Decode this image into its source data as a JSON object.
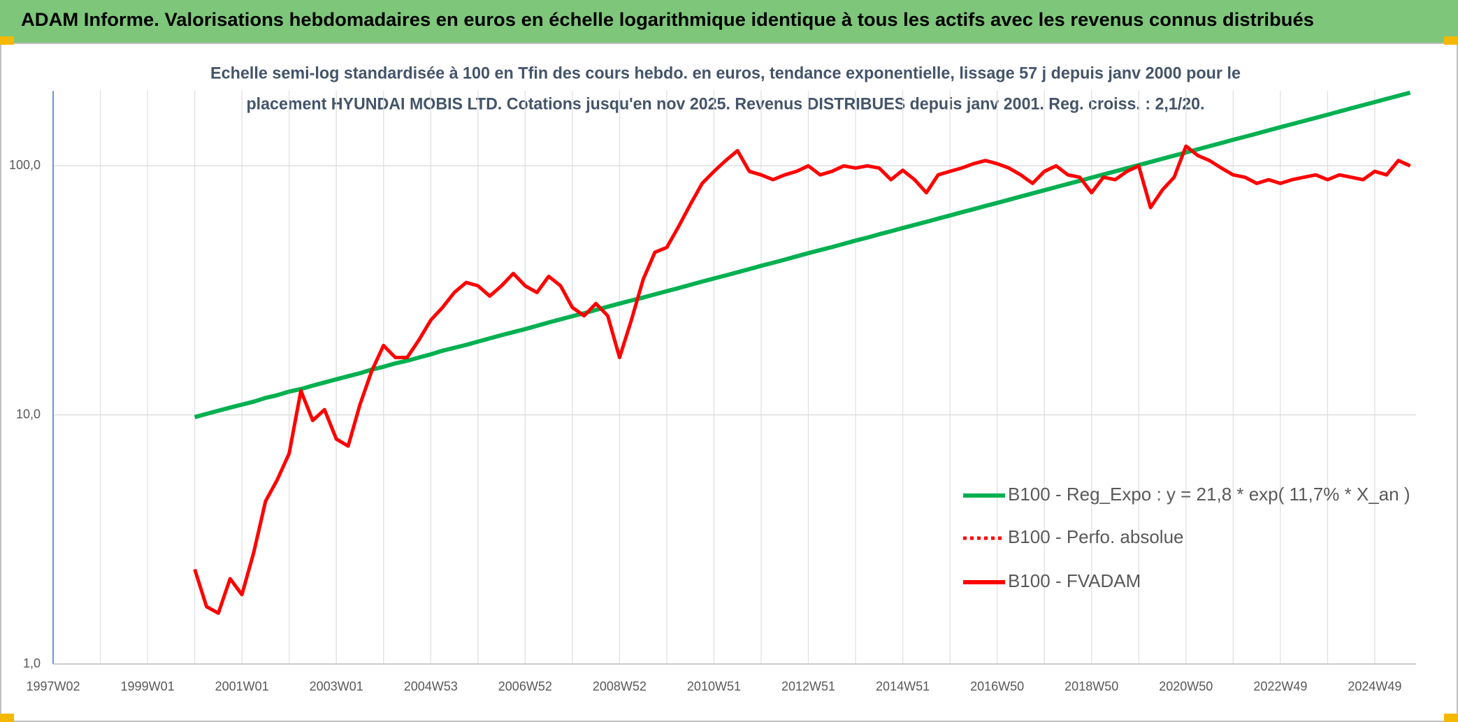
{
  "chart_data": {
    "type": "line",
    "title": "ADAM Informe. Valorisations hebdomadaires en euros en échelle logarithmique identique à tous les actifs avec les revenus connus distribués",
    "subtitle": [
      "Echelle semi-log standardisée à 100 en Tfin des cours hebdo. en euros, tendance exponentielle, lissage 57 j depuis janv 2000 pour le",
      "placement HYUNDAI MOBIS LTD. Cotations jusqu'en nov 2025. Revenus DISTRIBUES depuis janv 2001. Reg. croiss. : 2,1/20."
    ],
    "log_scale": true,
    "grid": true,
    "legend": "right",
    "ylim": [
      1,
      200
    ],
    "yticks": [
      {
        "value": 1,
        "label": "1,0"
      },
      {
        "value": 10,
        "label": "10,0"
      },
      {
        "value": 100,
        "label": "100,0"
      }
    ],
    "categories": [
      "1997W02",
      null,
      null,
      null,
      null,
      null,
      null,
      null,
      "1999W01",
      null,
      null,
      null,
      null,
      null,
      null,
      null,
      "2001W01",
      null,
      null,
      null,
      null,
      null,
      null,
      null,
      "2003W01",
      null,
      null,
      null,
      null,
      null,
      null,
      null,
      "2004W53",
      null,
      null,
      null,
      null,
      null,
      null,
      null,
      "2006W52",
      null,
      null,
      null,
      null,
      null,
      null,
      null,
      "2008W52",
      null,
      null,
      null,
      null,
      null,
      null,
      null,
      "2010W51",
      null,
      null,
      null,
      null,
      null,
      null,
      null,
      "2012W51",
      null,
      null,
      null,
      null,
      null,
      null,
      null,
      "2014W51",
      null,
      null,
      null,
      null,
      null,
      null,
      null,
      "2016W50",
      null,
      null,
      null,
      null,
      null,
      null,
      null,
      "2018W50",
      null,
      null,
      null,
      null,
      null,
      null,
      null,
      "2020W50",
      null,
      null,
      null,
      null,
      null,
      null,
      null,
      "2022W49",
      null,
      null,
      null,
      null,
      null,
      null,
      null,
      "2024W49",
      null,
      null,
      null
    ],
    "series": [
      {
        "name": "B100 - Reg_Expo : y = 21,8 * exp( 11,7% *  X_an )",
        "color": "#00b050",
        "style": "solid",
        "values": [
          null,
          null,
          null,
          null,
          null,
          null,
          null,
          null,
          null,
          null,
          null,
          null,
          9.8,
          10.1,
          10.4,
          10.7,
          11.0,
          11.3,
          11.7,
          12.0,
          12.4,
          12.7,
          13.1,
          13.5,
          13.9,
          14.3,
          14.7,
          15.2,
          15.6,
          16.1,
          16.5,
          17.0,
          17.5,
          18.1,
          18.6,
          19.1,
          19.7,
          20.3,
          20.9,
          21.5,
          22.1,
          22.8,
          23.5,
          24.2,
          24.9,
          25.6,
          26.4,
          27.2,
          28.0,
          28.8,
          29.6,
          30.5,
          31.4,
          32.3,
          33.3,
          34.3,
          35.3,
          36.3,
          37.4,
          38.5,
          39.7,
          40.8,
          42.0,
          43.3,
          44.6,
          45.9,
          47.2,
          48.6,
          50.1,
          51.5,
          53.1,
          54.6,
          56.3,
          57.9,
          59.6,
          61.4,
          63.2,
          65.1,
          67.0,
          69.0,
          71.0,
          73.1,
          75.3,
          77.5,
          79.8,
          82.2,
          84.6,
          87.1,
          89.7,
          92.3,
          95.0,
          97.8,
          100.7,
          103.7,
          106.8,
          109.9,
          113.2,
          116.5,
          120.0,
          123.5,
          127.2,
          130.9,
          134.8,
          138.8,
          142.9,
          147.1,
          151.4,
          155.9,
          160.5,
          165.3,
          170.2,
          175.2,
          180.4,
          185.7,
          191.2,
          196.8
        ]
      },
      {
        "name": "B100 - Perfo. absolue",
        "color": "#ff0000",
        "style": "dotted",
        "values": [
          null,
          null,
          null,
          null,
          null,
          null,
          null,
          null,
          null,
          null,
          null,
          null,
          null,
          null,
          null,
          null,
          null,
          null,
          null,
          null,
          null,
          null,
          null,
          null,
          null,
          null,
          null,
          null,
          null,
          null,
          null,
          null,
          null,
          null,
          null,
          null,
          null,
          null,
          null,
          null,
          null,
          null,
          null,
          null,
          null,
          null,
          null,
          null,
          null,
          null,
          null,
          null,
          null,
          null,
          null,
          null,
          null,
          null,
          null,
          null,
          null,
          null,
          null,
          null,
          null,
          null,
          null,
          null,
          null,
          null,
          null,
          null,
          null,
          null,
          null,
          null,
          null,
          null,
          null,
          null,
          null,
          null,
          null,
          null,
          null,
          null,
          null,
          null,
          null,
          null,
          null,
          null,
          null,
          null,
          null,
          null,
          null,
          null,
          null,
          null,
          null,
          null,
          null,
          null,
          null,
          null,
          null,
          null,
          null,
          null,
          null,
          null,
          null,
          null,
          null,
          null
        ]
      },
      {
        "name": "B100 - FVADAM",
        "color": "#ff0000",
        "style": "solid",
        "values": [
          null,
          null,
          null,
          null,
          null,
          null,
          null,
          null,
          null,
          null,
          null,
          null,
          2.4,
          1.7,
          1.6,
          2.2,
          1.9,
          2.8,
          4.5,
          5.5,
          7.0,
          12.5,
          9.5,
          10.5,
          8.0,
          7.5,
          11,
          15,
          19,
          17,
          17,
          20,
          24,
          27,
          31,
          34,
          33,
          30,
          33,
          37,
          33,
          31,
          36,
          33,
          27,
          25,
          28,
          25,
          17,
          24,
          35,
          45,
          47,
          57,
          70,
          85,
          95,
          105,
          115,
          95,
          92,
          88,
          92,
          95,
          100,
          92,
          95,
          100,
          98,
          100,
          98,
          88,
          96,
          88,
          78,
          92,
          95,
          98,
          102,
          105,
          102,
          98,
          92,
          85,
          95,
          100,
          92,
          90,
          78,
          90,
          88,
          95,
          100,
          68,
          80,
          90,
          120,
          110,
          105,
          98,
          92,
          90,
          85,
          88,
          85,
          88,
          90,
          92,
          88,
          92,
          90,
          88,
          95,
          92,
          105,
          100
        ]
      }
    ]
  }
}
